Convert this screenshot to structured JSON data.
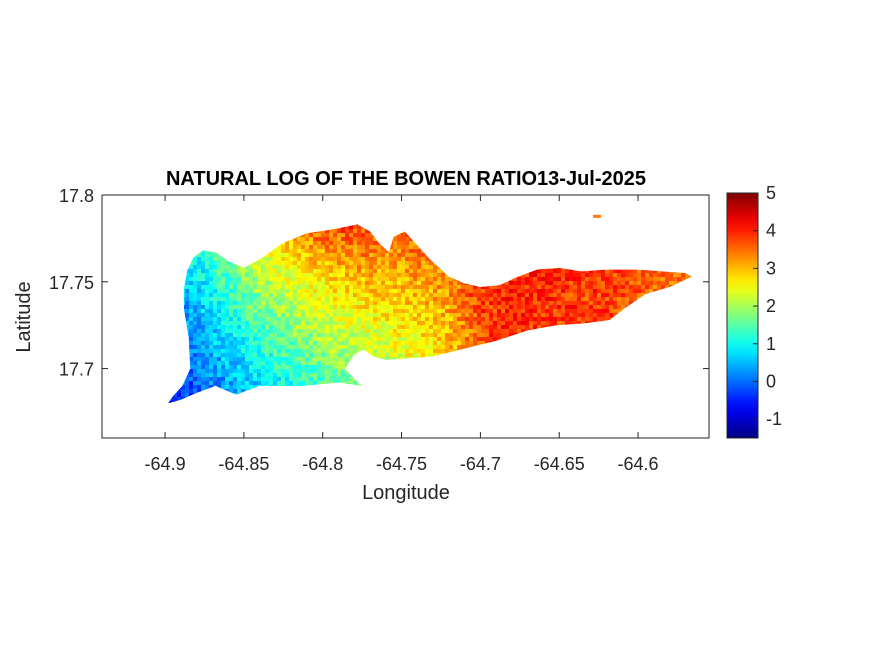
{
  "chart_data": {
    "type": "heatmap",
    "title": "NATURAL LOG OF THE BOWEN RATIO13-Jul-2025",
    "xlabel": "Longitude",
    "ylabel": "Latitude",
    "xlim": [
      -64.94,
      -64.555
    ],
    "ylim": [
      17.66,
      17.8
    ],
    "xticks": [
      -64.9,
      -64.85,
      -64.8,
      -64.75,
      -64.7,
      -64.65,
      -64.6
    ],
    "xtick_labels": [
      "-64.9",
      "-64.85",
      "-64.8",
      "-64.75",
      "-64.7",
      "-64.65",
      "-64.6"
    ],
    "yticks": [
      17.7,
      17.75,
      17.8
    ],
    "ytick_labels": [
      "17.7",
      "17.75",
      "17.8"
    ],
    "colormap": "jet",
    "clim": [
      -1.5,
      5
    ],
    "colorbar_ticks": [
      -1,
      0,
      1,
      2,
      3,
      4,
      5
    ],
    "colorbar_tick_labels": [
      "-1",
      "0",
      "1",
      "2",
      "3",
      "4",
      "5"
    ],
    "colorbar_location": "right",
    "grid": false,
    "field_profile": {
      "lon": [
        -64.9,
        -64.88,
        -64.86,
        -64.84,
        -64.82,
        -64.8,
        -64.78,
        -64.76,
        -64.74,
        -64.72,
        -64.7,
        -64.68,
        -64.65,
        -64.62,
        -64.6,
        -64.57
      ],
      "value_south": [
        -0.6,
        -0.2,
        0.2,
        0.6,
        0.9,
        1.2,
        1.5,
        1.8,
        2.2,
        2.6,
        3.6,
        3.8,
        3.7,
        3.6,
        3.5,
        3.3
      ],
      "value_north": [
        1.0,
        1.5,
        2.3,
        3.0,
        3.4,
        3.8,
        3.9,
        3.8,
        3.7,
        3.8,
        4.0,
        4.1,
        4.0,
        3.9,
        3.7,
        3.4
      ]
    },
    "island_outline_lonlat": [
      [
        -64.898,
        17.68
      ],
      [
        -64.895,
        17.684
      ],
      [
        -64.889,
        17.69
      ],
      [
        -64.884,
        17.7
      ],
      [
        -64.885,
        17.718
      ],
      [
        -64.888,
        17.734
      ],
      [
        -64.888,
        17.746
      ],
      [
        -64.886,
        17.756
      ],
      [
        -64.882,
        17.764
      ],
      [
        -64.876,
        17.768
      ],
      [
        -64.868,
        17.767
      ],
      [
        -64.86,
        17.762
      ],
      [
        -64.85,
        17.758
      ],
      [
        -64.838,
        17.764
      ],
      [
        -64.826,
        17.772
      ],
      [
        -64.81,
        17.778
      ],
      [
        -64.795,
        17.78
      ],
      [
        -64.778,
        17.783
      ],
      [
        -64.77,
        17.779
      ],
      [
        -64.764,
        17.772
      ],
      [
        -64.758,
        17.767
      ],
      [
        -64.755,
        17.776
      ],
      [
        -64.748,
        17.779
      ],
      [
        -64.742,
        17.773
      ],
      [
        -64.732,
        17.763
      ],
      [
        -64.72,
        17.753
      ],
      [
        -64.71,
        17.749
      ],
      [
        -64.7,
        17.747
      ],
      [
        -64.688,
        17.748
      ],
      [
        -64.676,
        17.753
      ],
      [
        -64.664,
        17.757
      ],
      [
        -64.65,
        17.758
      ],
      [
        -64.636,
        17.756
      ],
      [
        -64.62,
        17.757
      ],
      [
        -64.6,
        17.757
      ],
      [
        -64.585,
        17.756
      ],
      [
        -64.57,
        17.755
      ],
      [
        -64.566,
        17.753
      ],
      [
        -64.58,
        17.747
      ],
      [
        -64.595,
        17.743
      ],
      [
        -64.608,
        17.735
      ],
      [
        -64.618,
        17.728
      ],
      [
        -64.634,
        17.726
      ],
      [
        -64.652,
        17.725
      ],
      [
        -64.67,
        17.722
      ],
      [
        -64.69,
        17.716
      ],
      [
        -64.708,
        17.712
      ],
      [
        -64.73,
        17.707
      ],
      [
        -64.745,
        17.706
      ],
      [
        -64.76,
        17.705
      ],
      [
        -64.768,
        17.707
      ],
      [
        -64.774,
        17.711
      ],
      [
        -64.78,
        17.708
      ],
      [
        -64.786,
        17.7
      ],
      [
        -64.78,
        17.694
      ],
      [
        -64.775,
        17.69
      ],
      [
        -64.79,
        17.692
      ],
      [
        -64.812,
        17.69
      ],
      [
        -64.84,
        17.69
      ],
      [
        -64.855,
        17.685
      ],
      [
        -64.868,
        17.69
      ],
      [
        -64.88,
        17.686
      ],
      [
        -64.89,
        17.682
      ],
      [
        -64.898,
        17.68
      ]
    ],
    "islet_lonlat": [
      -64.626,
      17.788
    ]
  }
}
